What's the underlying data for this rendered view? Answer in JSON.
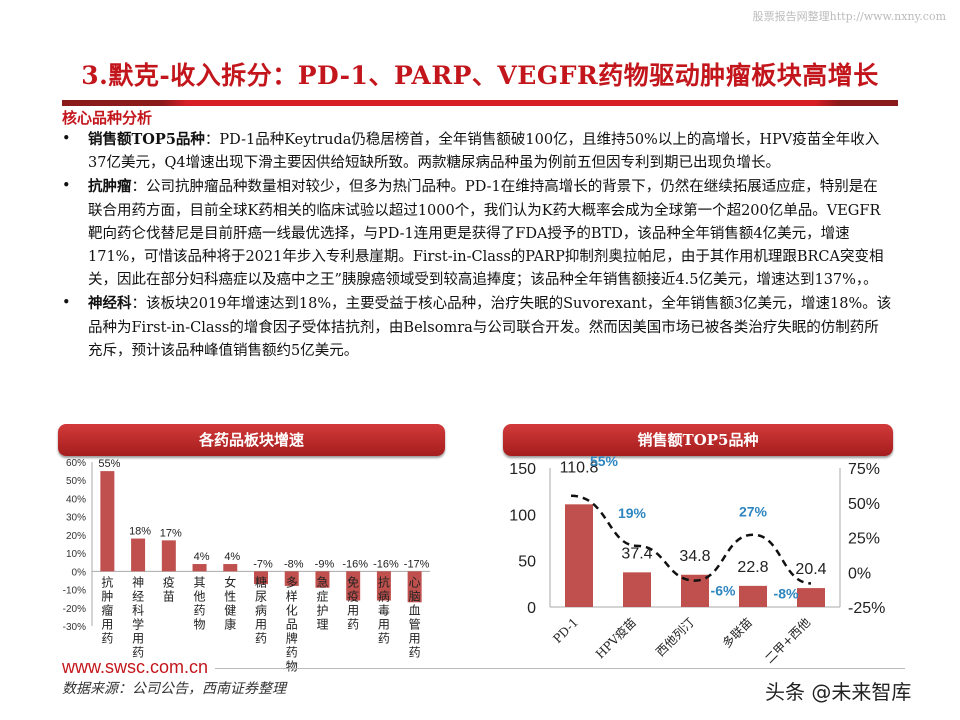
{
  "watermark": "股票报告网整理http://www.nxny.com",
  "title": "3.默克-收入拆分：PD-1、PARP、VEGFR药物驱动肿瘤板块高增长",
  "subtitle": "核心品种分析",
  "bullets": [
    {
      "head": "销售额TOP5品种",
      "text": "：PD-1品种Keytruda仍稳居榜首，全年销售额破100亿，且维持50%以上的高增长，HPV疫苗全年收入37亿美元，Q4增速出现下滑主要因供给短缺所致。两款糖尿病品种虽为例前五但因专利到期已出现负增长。"
    },
    {
      "head": "抗肿瘤",
      "text": "：公司抗肿瘤品种数量相对较少，但多为热门品种。PD-1在维持高增长的背景下，仍然在继续拓展适应症，特别是在联合用药方面，目前全球K药相关的临床试验以超过1000个，我们认为K药大概率会成为全球第一个超200亿单品。VEGFR靶向药仑伐替尼是目前肝癌一线最优选择，与PD-1连用更是获得了FDA授予的BTD，该品种全年销售额4亿美元，增速171%，可惜该品种将于2021年步入专利悬崖期。First-in-Class的PARP抑制剂奥拉帕尼，由于其作用机理跟BRCA突变相关，因此在部分妇科癌症以及癌中之王”胰腺癌领域受到较高追捧度；该品种全年销售额接近4.5亿美元，增速达到137%，。"
    },
    {
      "head": "神经科",
      "text": "：该板块2019年增速达到18%，主要受益于核心品种，治疗失眠的Suvorexant，全年销售额3亿美元，增速18%。该品种为First-in-Class的增食因子受体拮抗剂，由Belsomra与公司联合开发。然而因美国市场已被各类治疗失眠的仿制药所充斥，预计该品种峰值销售额约5亿美元。"
    }
  ],
  "footer": {
    "url": "www.swsc.com.cn",
    "source": "数据来源：公司公告，西南证券整理",
    "toutiao": "头条 @未来智库"
  },
  "colors": {
    "accent": "#c3161c",
    "bar": "#c0504d",
    "line_label": "#2e86c1"
  },
  "chart_data": [
    {
      "type": "bar",
      "title": "各药品板块增速",
      "categories": [
        "抗肿瘤用药",
        "神经科学用药",
        "疫苗",
        "其他药物",
        "女性健康",
        "糖尿病用药",
        "多样化品牌药物",
        "急症护理",
        "免疫用药",
        "抗病毒用药",
        "心脑血管用药"
      ],
      "values": [
        55,
        18,
        17,
        4,
        4,
        -7,
        -8,
        -9,
        -16,
        -16,
        -17
      ],
      "labels": [
        "55%",
        "18%",
        "17%",
        "4%",
        "4%",
        "-7%",
        "-8%",
        "-9%",
        "-16%",
        "-16%",
        "-17%"
      ],
      "ylim": [
        -30,
        60
      ],
      "yticks": [
        "60%",
        "50%",
        "40%",
        "30%",
        "20%",
        "10%",
        "0%",
        "-10%",
        "-20%",
        "-30%"
      ]
    },
    {
      "type": "bar+line",
      "title": "销售额TOP5品种",
      "categories": [
        "PD-1",
        "HPV疫苗",
        "西他列汀",
        "多联苗",
        "二甲+西他"
      ],
      "bars": [
        110.8,
        37.4,
        34.8,
        22.8,
        20.4
      ],
      "bar_labels": [
        "110.8",
        "37.4",
        "34.8",
        "22.8",
        "20.4"
      ],
      "growth": [
        55,
        19,
        -6,
        27,
        -8
      ],
      "growth_labels": [
        "55%",
        "19%",
        "-6%",
        "27%",
        "-8%"
      ],
      "ylim": [
        0,
        150
      ],
      "yticks": [
        "150",
        "100",
        "50",
        "0"
      ],
      "y2lim": [
        -25,
        75
      ],
      "y2ticks": [
        "75%",
        "50%",
        "25%",
        "0%",
        "-25%"
      ]
    }
  ]
}
